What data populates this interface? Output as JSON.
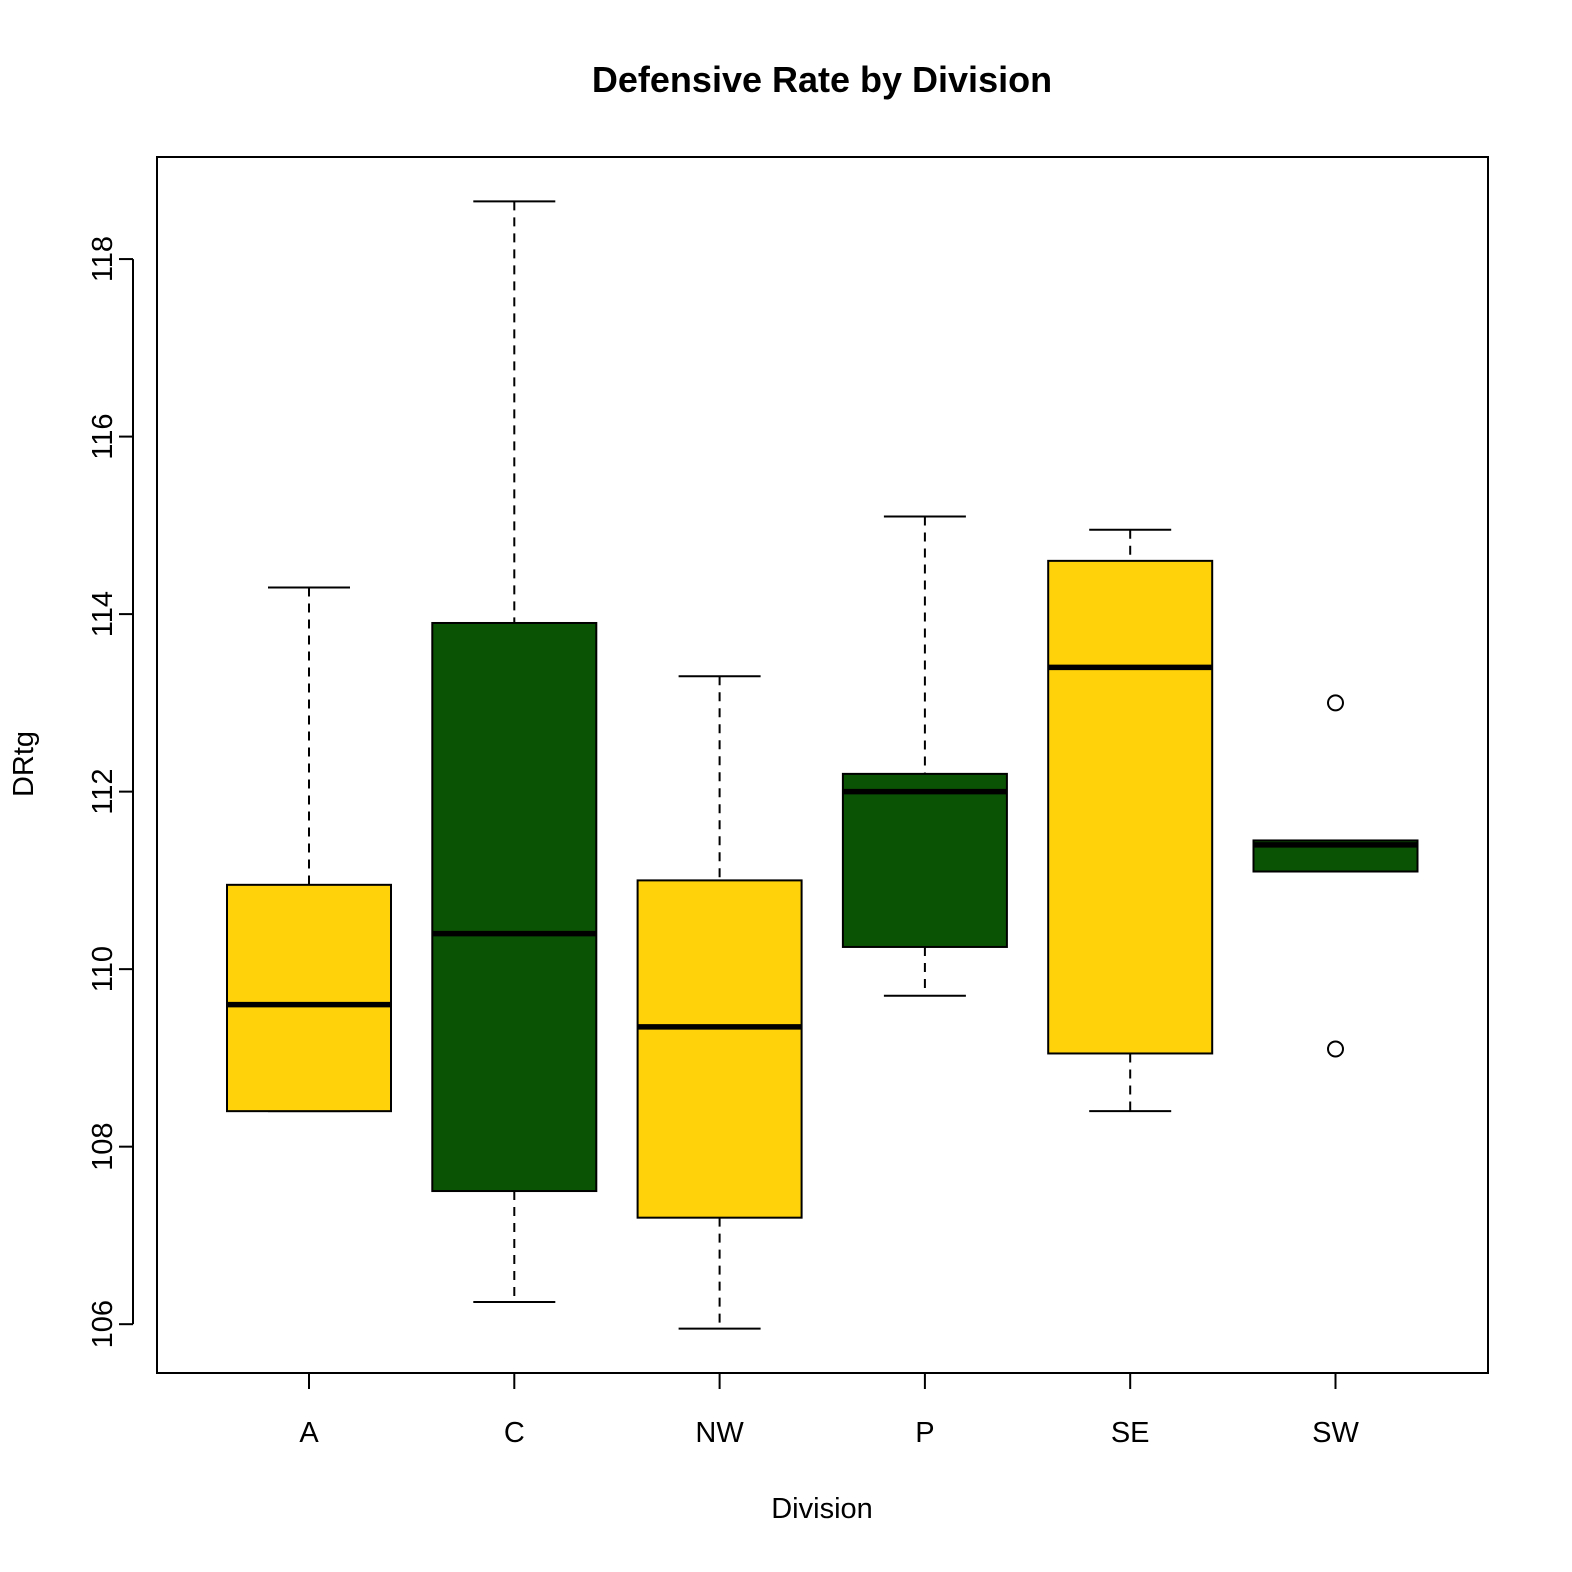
{
  "chart_data": {
    "type": "boxplot",
    "title": "Defensive Rate by Division",
    "xlabel": "Division",
    "ylabel": "DRtg",
    "ylim": [
      105.45,
      119.15
    ],
    "yticks": [
      106,
      108,
      110,
      112,
      114,
      116,
      118
    ],
    "grid": false,
    "legend": "none",
    "colors": {
      "yellow": "#FFD20A",
      "green": "#0B5304",
      "stroke": "#000000"
    },
    "categories": [
      "A",
      "C",
      "NW",
      "P",
      "SE",
      "SW"
    ],
    "boxes": [
      {
        "category": "A",
        "min": 108.4,
        "q1": 108.4,
        "median": 109.6,
        "q3": 110.95,
        "max": 114.3,
        "outliers": [],
        "color": "#FFD20A"
      },
      {
        "category": "C",
        "min": 106.25,
        "q1": 107.5,
        "median": 110.4,
        "q3": 113.9,
        "max": 118.65,
        "outliers": [],
        "color": "#0B5304"
      },
      {
        "category": "NW",
        "min": 105.95,
        "q1": 107.2,
        "median": 109.35,
        "q3": 111.0,
        "max": 113.3,
        "outliers": [],
        "color": "#FFD20A"
      },
      {
        "category": "P",
        "min": 109.7,
        "q1": 110.25,
        "median": 112.0,
        "q3": 112.2,
        "max": 115.1,
        "outliers": [],
        "color": "#0B5304"
      },
      {
        "category": "SE",
        "min": 108.4,
        "q1": 109.05,
        "median": 113.4,
        "q3": 114.6,
        "max": 114.95,
        "outliers": [],
        "color": "#FFD20A"
      },
      {
        "category": "SW",
        "min": 111.1,
        "q1": 111.1,
        "median": 111.4,
        "q3": 111.45,
        "max": 111.45,
        "outliers": [
          113.0,
          109.1
        ],
        "color": "#0B5304"
      }
    ]
  }
}
